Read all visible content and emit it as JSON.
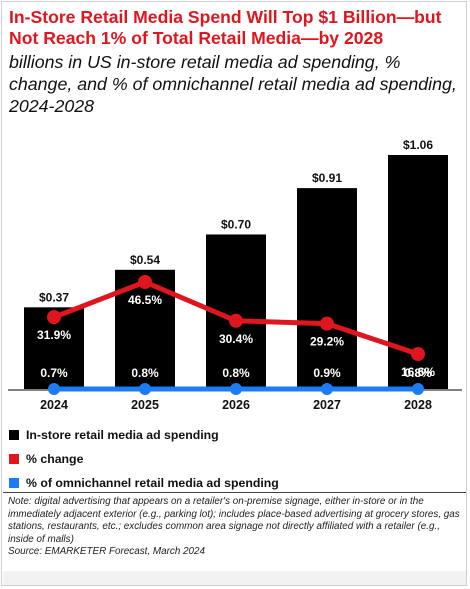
{
  "header": {
    "title": "In-Store Retail Media Spend Will Top $1 Billion—but Not Reach 1% of Total Retail Media—by 2028",
    "subtitle": "billions in US in-store retail media ad spending, % change, and % of omnichannel retail media ad spending, 2024-2028"
  },
  "chart_data": {
    "type": "bar",
    "categories": [
      "2024",
      "2025",
      "2026",
      "2027",
      "2028"
    ],
    "ylim": [
      0,
      1.06
    ],
    "grid": false,
    "legend_position": "bottom-left",
    "series": [
      {
        "name": "In-store retail media ad spending",
        "type": "bar",
        "values": [
          0.37,
          0.54,
          0.7,
          0.91,
          1.06
        ],
        "labels": [
          "$0.37",
          "$0.54",
          "$0.70",
          "$0.91",
          "$1.06"
        ],
        "color": "#000000"
      },
      {
        "name": "% change",
        "type": "line",
        "values": [
          31.9,
          46.5,
          30.4,
          29.2,
          16.6
        ],
        "labels": [
          "31.9%",
          "46.5%",
          "30.4%",
          "29.2%",
          "16.6%"
        ],
        "color": "#e0161f"
      },
      {
        "name": "% of omnichannel retail media ad spending",
        "type": "line",
        "values": [
          0.7,
          0.8,
          0.8,
          0.9,
          0.8
        ],
        "labels": [
          "0.7%",
          "0.8%",
          "0.8%",
          "0.9%",
          "0.8%"
        ],
        "color": "#1c7cf4"
      }
    ]
  },
  "footer": {
    "note": "Note: digital advertising that appears on a retailer's on-premise signage, either in-store or in the immediately adjacent exterior (e.g., parking lot); includes place-based advertising at grocery stores, gas stations, restaurants, etc.; excludes common area signage not directly affiliated with a retailer (e.g., inside of malls)",
    "source": "Source: EMARKETER Forecast, March 2024"
  }
}
